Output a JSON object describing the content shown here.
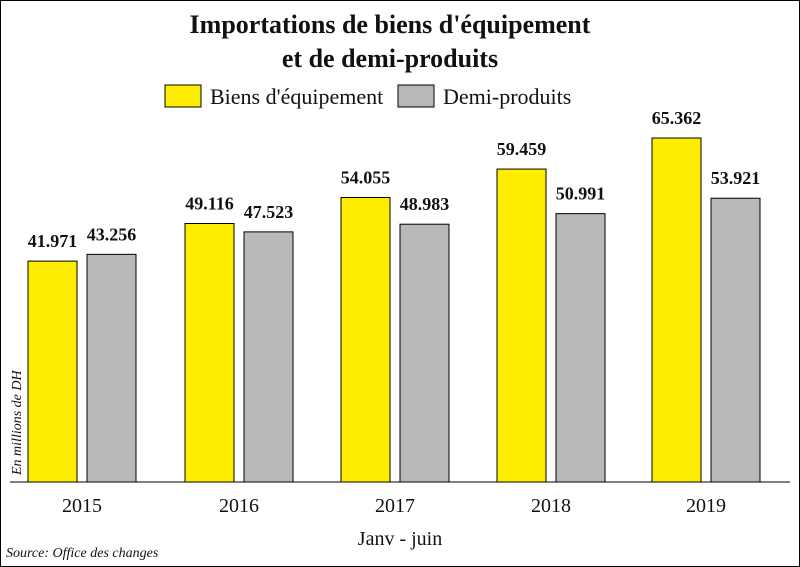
{
  "chart_data": {
    "type": "bar",
    "title_line1": "Importations de biens d'équipement",
    "title_line2": "et de demi-produits",
    "categories": [
      "2015",
      "2016",
      "2017",
      "2018",
      "2019"
    ],
    "series": [
      {
        "name": "Biens d'équipement",
        "color": "#ffed00",
        "values": [
          41.971,
          49.116,
          54.055,
          59.459,
          65.362
        ],
        "labels": [
          "41.971",
          "49.116",
          "54.055",
          "59.459",
          "65.362"
        ]
      },
      {
        "name": "Demi-produits",
        "color": "#b9b9bb",
        "values": [
          43.256,
          47.523,
          48.983,
          50.991,
          53.921
        ],
        "labels": [
          "43.256",
          "47.523",
          "48.983",
          "50.991",
          "53.921"
        ]
      }
    ],
    "xlabel": "Janv - juin",
    "ylabel": "En millions de DH",
    "source": "Source: Office des changes",
    "legend_position": "top-center",
    "grid": false
  }
}
